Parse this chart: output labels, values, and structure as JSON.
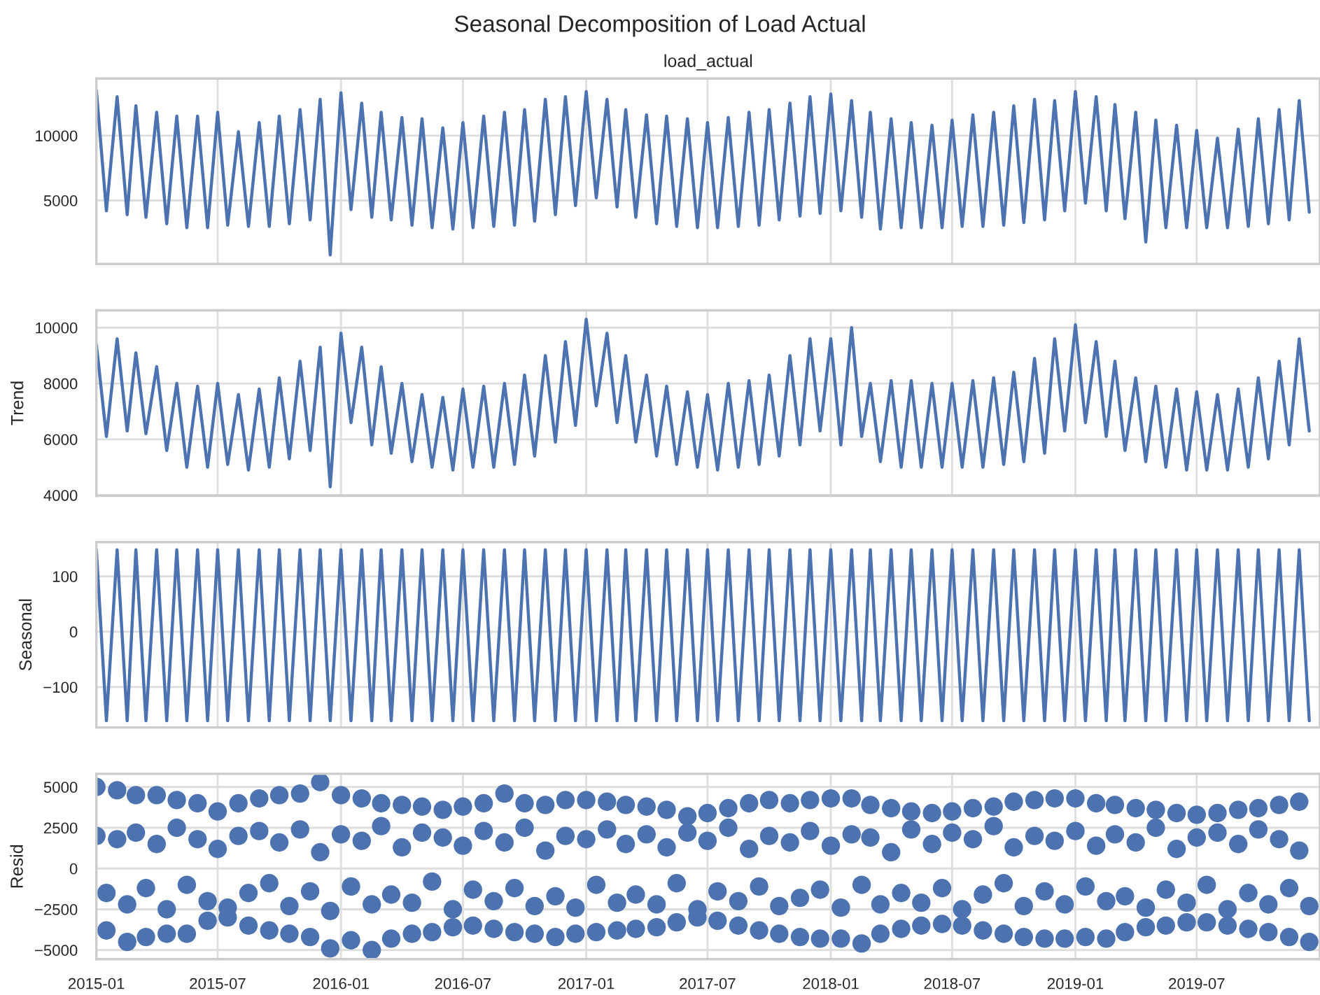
{
  "chart_data": [
    {
      "type": "line",
      "title": "Seasonal Decomposition of Load Actual",
      "subtitle": "load_actual",
      "x": [
        "2015-01-01",
        "2015-01-16",
        "2015-02-01",
        "2015-02-16",
        "2015-03-01",
        "2015-03-16",
        "2015-04-01",
        "2015-04-16",
        "2015-05-01",
        "2015-05-16",
        "2015-06-01",
        "2015-06-16",
        "2015-07-01",
        "2015-07-16",
        "2015-08-01",
        "2015-08-16",
        "2015-09-01",
        "2015-09-16",
        "2015-10-01",
        "2015-10-16",
        "2015-11-01",
        "2015-11-16",
        "2015-12-01",
        "2015-12-16",
        "2016-01-01",
        "2016-01-16",
        "2016-02-01",
        "2016-02-16",
        "2016-03-01",
        "2016-03-16",
        "2016-04-01",
        "2016-04-16",
        "2016-05-01",
        "2016-05-16",
        "2016-06-01",
        "2016-06-16",
        "2016-07-01",
        "2016-07-16",
        "2016-08-01",
        "2016-08-16",
        "2016-09-01",
        "2016-09-16",
        "2016-10-01",
        "2016-10-16",
        "2016-11-01",
        "2016-11-16",
        "2016-12-01",
        "2016-12-16",
        "2017-01-01",
        "2017-01-16",
        "2017-02-01",
        "2017-02-16",
        "2017-03-01",
        "2017-03-16",
        "2017-04-01",
        "2017-04-16",
        "2017-05-01",
        "2017-05-16",
        "2017-06-01",
        "2017-06-16",
        "2017-07-01",
        "2017-07-16",
        "2017-08-01",
        "2017-08-16",
        "2017-09-01",
        "2017-09-16",
        "2017-10-01",
        "2017-10-16",
        "2017-11-01",
        "2017-11-16",
        "2017-12-01",
        "2017-12-16",
        "2018-01-01",
        "2018-01-16",
        "2018-02-01",
        "2018-02-16",
        "2018-03-01",
        "2018-03-16",
        "2018-04-01",
        "2018-04-16",
        "2018-05-01",
        "2018-05-16",
        "2018-06-01",
        "2018-06-16",
        "2018-07-01",
        "2018-07-16",
        "2018-08-01",
        "2018-08-16",
        "2018-09-01",
        "2018-09-16",
        "2018-10-01",
        "2018-10-16",
        "2018-11-01",
        "2018-11-16",
        "2018-12-01",
        "2018-12-16",
        "2019-01-01",
        "2019-01-16",
        "2019-02-01",
        "2019-02-16",
        "2019-03-01",
        "2019-03-16",
        "2019-04-01",
        "2019-04-16",
        "2019-05-01",
        "2019-05-16",
        "2019-06-01",
        "2019-06-16",
        "2019-07-01",
        "2019-07-16",
        "2019-08-01",
        "2019-08-16",
        "2019-09-01",
        "2019-09-16",
        "2019-10-01",
        "2019-10-16",
        "2019-11-01",
        "2019-11-16",
        "2019-12-01",
        "2019-12-16"
      ],
      "series": [
        {
          "color": "#4c72b0",
          "values": [
            13500,
            4200,
            13000,
            3900,
            12300,
            3700,
            11800,
            3200,
            11500,
            2900,
            11500,
            2900,
            11800,
            3100,
            10300,
            3000,
            11000,
            3000,
            11500,
            3200,
            12000,
            3500,
            12800,
            800,
            13300,
            4300,
            12500,
            3700,
            11800,
            3500,
            11400,
            3100,
            11300,
            2900,
            10600,
            2800,
            11000,
            2900,
            11500,
            3000,
            11800,
            3100,
            12000,
            3400,
            12800,
            3900,
            13000,
            4600,
            13400,
            5200,
            12800,
            4500,
            12000,
            3700,
            11600,
            3200,
            11500,
            3000,
            11300,
            2900,
            11000,
            2900,
            11400,
            3000,
            11800,
            3100,
            12000,
            3500,
            12500,
            3800,
            13000,
            4000,
            13200,
            4200,
            12700,
            3700,
            11800,
            2800,
            11300,
            2900,
            11000,
            2900,
            10800,
            2900,
            11200,
            3000,
            11600,
            3000,
            11800,
            3100,
            12300,
            3300,
            12800,
            3500,
            12700,
            4200,
            13400,
            4800,
            13000,
            4200,
            12400,
            3600,
            11800,
            1800,
            11200,
            2900,
            10800,
            2900,
            10400,
            2900,
            9800,
            2900,
            10500,
            3000,
            11300,
            3200,
            12000,
            3500,
            12700,
            4100
          ]
        }
      ],
      "xlim": [
        "2015-01-01",
        "2020-01-01"
      ],
      "ylim": [
        100,
        14400
      ],
      "yticks": [
        5000,
        10000
      ],
      "xticks": [
        {
          "value": "2015-01-01",
          "label": null
        },
        {
          "value": "2015-07-01",
          "label": null
        },
        {
          "value": "2016-01-01",
          "label": null
        },
        {
          "value": "2016-07-01",
          "label": null
        },
        {
          "value": "2017-01-01",
          "label": null
        },
        {
          "value": "2017-07-01",
          "label": null
        },
        {
          "value": "2018-01-01",
          "label": null
        },
        {
          "value": "2018-07-01",
          "label": null
        },
        {
          "value": "2019-01-01",
          "label": null
        },
        {
          "value": "2019-07-01",
          "label": null
        }
      ],
      "tick_labels": "y",
      "grid": true,
      "marker": "none"
    },
    {
      "type": "line",
      "ylabel": "Trend",
      "x": [
        "2015-01-01",
        "2015-01-16",
        "2015-02-01",
        "2015-02-16",
        "2015-03-01",
        "2015-03-16",
        "2015-04-01",
        "2015-04-16",
        "2015-05-01",
        "2015-05-16",
        "2015-06-01",
        "2015-06-16",
        "2015-07-01",
        "2015-07-16",
        "2015-08-01",
        "2015-08-16",
        "2015-09-01",
        "2015-09-16",
        "2015-10-01",
        "2015-10-16",
        "2015-11-01",
        "2015-11-16",
        "2015-12-01",
        "2015-12-16",
        "2016-01-01",
        "2016-01-16",
        "2016-02-01",
        "2016-02-16",
        "2016-03-01",
        "2016-03-16",
        "2016-04-01",
        "2016-04-16",
        "2016-05-01",
        "2016-05-16",
        "2016-06-01",
        "2016-06-16",
        "2016-07-01",
        "2016-07-16",
        "2016-08-01",
        "2016-08-16",
        "2016-09-01",
        "2016-09-16",
        "2016-10-01",
        "2016-10-16",
        "2016-11-01",
        "2016-11-16",
        "2016-12-01",
        "2016-12-16",
        "2017-01-01",
        "2017-01-16",
        "2017-02-01",
        "2017-02-16",
        "2017-03-01",
        "2017-03-16",
        "2017-04-01",
        "2017-04-16",
        "2017-05-01",
        "2017-05-16",
        "2017-06-01",
        "2017-06-16",
        "2017-07-01",
        "2017-07-16",
        "2017-08-01",
        "2017-08-16",
        "2017-09-01",
        "2017-09-16",
        "2017-10-01",
        "2017-10-16",
        "2017-11-01",
        "2017-11-16",
        "2017-12-01",
        "2017-12-16",
        "2018-01-01",
        "2018-01-16",
        "2018-02-01",
        "2018-02-16",
        "2018-03-01",
        "2018-03-16",
        "2018-04-01",
        "2018-04-16",
        "2018-05-01",
        "2018-05-16",
        "2018-06-01",
        "2018-06-16",
        "2018-07-01",
        "2018-07-16",
        "2018-08-01",
        "2018-08-16",
        "2018-09-01",
        "2018-09-16",
        "2018-10-01",
        "2018-10-16",
        "2018-11-01",
        "2018-11-16",
        "2018-12-01",
        "2018-12-16",
        "2019-01-01",
        "2019-01-16",
        "2019-02-01",
        "2019-02-16",
        "2019-03-01",
        "2019-03-16",
        "2019-04-01",
        "2019-04-16",
        "2019-05-01",
        "2019-05-16",
        "2019-06-01",
        "2019-06-16",
        "2019-07-01",
        "2019-07-16",
        "2019-08-01",
        "2019-08-16",
        "2019-09-01",
        "2019-09-16",
        "2019-10-01",
        "2019-10-16",
        "2019-11-01",
        "2019-11-16",
        "2019-12-01",
        "2019-12-16"
      ],
      "series": [
        {
          "color": "#4c72b0",
          "values": [
            9400,
            6100,
            9600,
            6300,
            9100,
            6200,
            8600,
            5600,
            8000,
            5000,
            7900,
            5000,
            8000,
            5100,
            7600,
            4900,
            7800,
            5000,
            8200,
            5300,
            8800,
            5600,
            9300,
            4300,
            9800,
            6600,
            9300,
            5800,
            8600,
            5500,
            8000,
            5200,
            7600,
            5000,
            7500,
            4900,
            7800,
            5000,
            7900,
            5000,
            8000,
            5100,
            8300,
            5400,
            9000,
            5900,
            9500,
            6500,
            10300,
            7200,
            9800,
            6600,
            9000,
            5900,
            8300,
            5400,
            7900,
            5100,
            7700,
            5000,
            7600,
            4900,
            8000,
            5000,
            8100,
            5100,
            8300,
            5400,
            9000,
            5800,
            9600,
            6300,
            9600,
            5800,
            10000,
            6100,
            8000,
            5200,
            8100,
            5000,
            8100,
            5000,
            8000,
            5000,
            8000,
            5000,
            8100,
            5000,
            8200,
            5100,
            8400,
            5200,
            8900,
            5500,
            9600,
            6300,
            10100,
            6600,
            9500,
            6100,
            8800,
            5600,
            8200,
            5200,
            7900,
            5000,
            7800,
            4900,
            7700,
            4900,
            7600,
            4900,
            7800,
            5000,
            8200,
            5300,
            8800,
            5800,
            9600,
            6300
          ]
        }
      ],
      "xlim": [
        "2015-01-01",
        "2020-01-01"
      ],
      "ylim": [
        3980,
        10620
      ],
      "yticks": [
        4000,
        6000,
        8000,
        10000
      ],
      "xticks": [
        {
          "value": "2015-01-01",
          "label": null
        },
        {
          "value": "2015-07-01",
          "label": null
        },
        {
          "value": "2016-01-01",
          "label": null
        },
        {
          "value": "2016-07-01",
          "label": null
        },
        {
          "value": "2017-01-01",
          "label": null
        },
        {
          "value": "2017-07-01",
          "label": null
        },
        {
          "value": "2018-01-01",
          "label": null
        },
        {
          "value": "2018-07-01",
          "label": null
        },
        {
          "value": "2019-01-01",
          "label": null
        },
        {
          "value": "2019-07-01",
          "label": null
        }
      ],
      "tick_labels": "y",
      "grid": true,
      "marker": "none"
    },
    {
      "type": "line",
      "ylabel": "Seasonal",
      "x": [
        "2015-01-01",
        "2015-01-16",
        "2015-02-01",
        "2015-02-16",
        "2015-03-01",
        "2015-03-16",
        "2015-04-01",
        "2015-04-16",
        "2015-05-01",
        "2015-05-16",
        "2015-06-01",
        "2015-06-16",
        "2015-07-01",
        "2015-07-16",
        "2015-08-01",
        "2015-08-16",
        "2015-09-01",
        "2015-09-16",
        "2015-10-01",
        "2015-10-16",
        "2015-11-01",
        "2015-11-16",
        "2015-12-01",
        "2015-12-16",
        "2016-01-01",
        "2016-01-16",
        "2016-02-01",
        "2016-02-16",
        "2016-03-01",
        "2016-03-16",
        "2016-04-01",
        "2016-04-16",
        "2016-05-01",
        "2016-05-16",
        "2016-06-01",
        "2016-06-16",
        "2016-07-01",
        "2016-07-16",
        "2016-08-01",
        "2016-08-16",
        "2016-09-01",
        "2016-09-16",
        "2016-10-01",
        "2016-10-16",
        "2016-11-01",
        "2016-11-16",
        "2016-12-01",
        "2016-12-16",
        "2017-01-01",
        "2017-01-16",
        "2017-02-01",
        "2017-02-16",
        "2017-03-01",
        "2017-03-16",
        "2017-04-01",
        "2017-04-16",
        "2017-05-01",
        "2017-05-16",
        "2017-06-01",
        "2017-06-16",
        "2017-07-01",
        "2017-07-16",
        "2017-08-01",
        "2017-08-16",
        "2017-09-01",
        "2017-09-16",
        "2017-10-01",
        "2017-10-16",
        "2017-11-01",
        "2017-11-16",
        "2017-12-01",
        "2017-12-16",
        "2018-01-01",
        "2018-01-16",
        "2018-02-01",
        "2018-02-16",
        "2018-03-01",
        "2018-03-16",
        "2018-04-01",
        "2018-04-16",
        "2018-05-01",
        "2018-05-16",
        "2018-06-01",
        "2018-06-16",
        "2018-07-01",
        "2018-07-16",
        "2018-08-01",
        "2018-08-16",
        "2018-09-01",
        "2018-09-16",
        "2018-10-01",
        "2018-10-16",
        "2018-11-01",
        "2018-11-16",
        "2018-12-01",
        "2018-12-16",
        "2019-01-01",
        "2019-01-16",
        "2019-02-01",
        "2019-02-16",
        "2019-03-01",
        "2019-03-16",
        "2019-04-01",
        "2019-04-16",
        "2019-05-01",
        "2019-05-16",
        "2019-06-01",
        "2019-06-16",
        "2019-07-01",
        "2019-07-16",
        "2019-08-01",
        "2019-08-16",
        "2019-09-01",
        "2019-09-16",
        "2019-10-01",
        "2019-10-16",
        "2019-11-01",
        "2019-11-16",
        "2019-12-01",
        "2019-12-16"
      ],
      "series": [
        {
          "color": "#4c72b0",
          "values": [
            148,
            -161,
            148,
            -161,
            148,
            -161,
            148,
            -161,
            148,
            -161,
            148,
            -161,
            148,
            -161,
            148,
            -161,
            148,
            -161,
            148,
            -161,
            148,
            -161,
            148,
            -161,
            148,
            -161,
            148,
            -161,
            148,
            -161,
            148,
            -161,
            148,
            -161,
            148,
            -161,
            148,
            -161,
            148,
            -161,
            148,
            -161,
            148,
            -161,
            148,
            -161,
            148,
            -161,
            148,
            -161,
            148,
            -161,
            148,
            -161,
            148,
            -161,
            148,
            -161,
            148,
            -161,
            148,
            -161,
            148,
            -161,
            148,
            -161,
            148,
            -161,
            148,
            -161,
            148,
            -161,
            148,
            -161,
            148,
            -161,
            148,
            -161,
            148,
            -161,
            148,
            -161,
            148,
            -161,
            148,
            -161,
            148,
            -161,
            148,
            -161,
            148,
            -161,
            148,
            -161,
            148,
            -161,
            148,
            -161,
            148,
            -161,
            148,
            -161,
            148,
            -161,
            148,
            -161,
            148,
            -161,
            148,
            -161,
            148,
            -161,
            148,
            -161,
            148,
            -161,
            148,
            -161,
            148,
            -161
          ]
        }
      ],
      "xlim": [
        "2015-01-01",
        "2020-01-01"
      ],
      "ylim": [
        -173,
        162
      ],
      "yticks": [
        {
          "value": -100,
          "label": "−100"
        },
        0,
        100
      ],
      "xticks": [
        {
          "value": "2015-01-01",
          "label": null
        },
        {
          "value": "2015-07-01",
          "label": null
        },
        {
          "value": "2016-01-01",
          "label": null
        },
        {
          "value": "2016-07-01",
          "label": null
        },
        {
          "value": "2017-01-01",
          "label": null
        },
        {
          "value": "2017-07-01",
          "label": null
        },
        {
          "value": "2018-01-01",
          "label": null
        },
        {
          "value": "2018-07-01",
          "label": null
        },
        {
          "value": "2019-01-01",
          "label": null
        },
        {
          "value": "2019-07-01",
          "label": null
        }
      ],
      "tick_labels": "y",
      "grid": true,
      "marker": "none"
    },
    {
      "type": "scatter",
      "ylabel": "Resid",
      "x": [
        "2015-01-01",
        "2015-01-16",
        "2015-02-01",
        "2015-02-16",
        "2015-03-01",
        "2015-03-16",
        "2015-04-01",
        "2015-04-16",
        "2015-05-01",
        "2015-05-16",
        "2015-06-01",
        "2015-06-16",
        "2015-07-01",
        "2015-07-16",
        "2015-08-01",
        "2015-08-16",
        "2015-09-01",
        "2015-09-16",
        "2015-10-01",
        "2015-10-16",
        "2015-11-01",
        "2015-11-16",
        "2015-12-01",
        "2015-12-16",
        "2016-01-01",
        "2016-01-16",
        "2016-02-01",
        "2016-02-16",
        "2016-03-01",
        "2016-03-16",
        "2016-04-01",
        "2016-04-16",
        "2016-05-01",
        "2016-05-16",
        "2016-06-01",
        "2016-06-16",
        "2016-07-01",
        "2016-07-16",
        "2016-08-01",
        "2016-08-16",
        "2016-09-01",
        "2016-09-16",
        "2016-10-01",
        "2016-10-16",
        "2016-11-01",
        "2016-11-16",
        "2016-12-01",
        "2016-12-16",
        "2017-01-01",
        "2017-01-16",
        "2017-02-01",
        "2017-02-16",
        "2017-03-01",
        "2017-03-16",
        "2017-04-01",
        "2017-04-16",
        "2017-05-01",
        "2017-05-16",
        "2017-06-01",
        "2017-06-16",
        "2017-07-01",
        "2017-07-16",
        "2017-08-01",
        "2017-08-16",
        "2017-09-01",
        "2017-09-16",
        "2017-10-01",
        "2017-10-16",
        "2017-11-01",
        "2017-11-16",
        "2017-12-01",
        "2017-12-16",
        "2018-01-01",
        "2018-01-16",
        "2018-02-01",
        "2018-02-16",
        "2018-03-01",
        "2018-03-16",
        "2018-04-01",
        "2018-04-16",
        "2018-05-01",
        "2018-05-16",
        "2018-06-01",
        "2018-06-16",
        "2018-07-01",
        "2018-07-16",
        "2018-08-01",
        "2018-08-16",
        "2018-09-01",
        "2018-09-16",
        "2018-10-01",
        "2018-10-16",
        "2018-11-01",
        "2018-11-16",
        "2018-12-01",
        "2018-12-16",
        "2019-01-01",
        "2019-01-16",
        "2019-02-01",
        "2019-02-16",
        "2019-03-01",
        "2019-03-16",
        "2019-04-01",
        "2019-04-16",
        "2019-05-01",
        "2019-05-16",
        "2019-06-01",
        "2019-06-16",
        "2019-07-01",
        "2019-07-16",
        "2019-08-01",
        "2019-08-16",
        "2019-09-01",
        "2019-09-16",
        "2019-10-01",
        "2019-10-16",
        "2019-11-01",
        "2019-11-16",
        "2019-12-01",
        "2019-12-16"
      ],
      "series": [
        {
          "color": "#4c72b0",
          "values": [
            5000,
            -3800,
            4800,
            -4500,
            4500,
            -4200,
            4500,
            -4000,
            4200,
            -4000,
            4000,
            -3200,
            3500,
            -3000,
            4000,
            -3500,
            4300,
            -3800,
            4500,
            -4000,
            4600,
            -4200,
            5300,
            -4900,
            4500,
            -4400,
            4300,
            -5000,
            4000,
            -4300,
            3900,
            -4000,
            3800,
            -3900,
            3600,
            -3600,
            3800,
            -3500,
            4000,
            -3700,
            4600,
            -3900,
            4000,
            -4000,
            3900,
            -4200,
            4200,
            -4000,
            4200,
            -3900,
            4100,
            -3800,
            3900,
            -3700,
            3800,
            -3600,
            3600,
            -3300,
            3200,
            -3000,
            3400,
            -3200,
            3700,
            -3500,
            4000,
            -3800,
            4200,
            -4000,
            4000,
            -4200,
            4200,
            -4300,
            4300,
            -4300,
            4300,
            -4600,
            3900,
            -4000,
            3700,
            -3700,
            3500,
            -3500,
            3400,
            -3400,
            3500,
            -3500,
            3700,
            -3800,
            3800,
            -4000,
            4100,
            -4200,
            4200,
            -4300,
            4300,
            -4300,
            4300,
            -4200,
            4000,
            -4300,
            3900,
            -3900,
            3700,
            -3600,
            3600,
            -3500,
            3400,
            -3300,
            3300,
            -3300,
            3400,
            -3500,
            3600,
            -3700,
            3700,
            -3900,
            3900,
            -4200,
            4100,
            -4500
          ]
        },
        {
          "color": "#4c72b0",
          "values": [
            2000,
            -1500,
            1800,
            -2200,
            2200,
            -1200,
            1500,
            -2500,
            2500,
            -1000,
            1800,
            -2000,
            1200,
            -2400,
            2000,
            -1500,
            2300,
            -900,
            1600,
            -2300,
            2400,
            -1400,
            1000,
            -2600,
            2100,
            -1100,
            1700,
            -2200,
            2600,
            -1600,
            1300,
            -2100,
            2200,
            -800,
            1900,
            -2500,
            1400,
            -1300,
            2300,
            -2000,
            1600,
            -1200,
            2500,
            -2300,
            1100,
            -1700,
            2000,
            -2400,
            1800,
            -1000,
            2400,
            -2100,
            1500,
            -1600,
            2100,
            -2200,
            1300,
            -900,
            2200,
            -2500,
            1700,
            -1400,
            2500,
            -2000,
            1200,
            -1100,
            2000,
            -2300,
            1600,
            -1800,
            2300,
            -1300,
            1400,
            -2400,
            2100,
            -1000,
            1900,
            -2200,
            1000,
            -1500,
            2400,
            -2100,
            1500,
            -1200,
            2200,
            -2500,
            1800,
            -1600,
            2600,
            -900,
            1300,
            -2300,
            2000,
            -1400,
            1700,
            -2200,
            2300,
            -1100,
            1400,
            -2000,
            2100,
            -1700,
            1600,
            -2400,
            2500,
            -1300,
            1200,
            -2100,
            1900,
            -1000,
            2200,
            -2500,
            1500,
            -1500,
            2400,
            -2200,
            1800,
            -1200,
            1100,
            -2300
          ]
        }
      ],
      "xlim": [
        "2015-01-01",
        "2020-01-01"
      ],
      "ylim": [
        -5560,
        5810
      ],
      "yticks": [
        {
          "value": -5000,
          "label": "−5000"
        },
        {
          "value": -2500,
          "label": "−2500"
        },
        0,
        2500,
        5000
      ],
      "xticks": [
        {
          "value": "2015-01-01",
          "label": "2015-01"
        },
        {
          "value": "2015-07-01",
          "label": "2015-07"
        },
        {
          "value": "2016-01-01",
          "label": "2016-01"
        },
        {
          "value": "2016-07-01",
          "label": "2016-07"
        },
        {
          "value": "2017-01-01",
          "label": "2017-01"
        },
        {
          "value": "2017-07-01",
          "label": "2017-07"
        },
        {
          "value": "2018-01-01",
          "label": "2018-01"
        },
        {
          "value": "2018-07-01",
          "label": "2018-07"
        },
        {
          "value": "2019-01-01",
          "label": "2019-01"
        },
        {
          "value": "2019-07-01",
          "label": "2019-07"
        }
      ],
      "grid": true,
      "marker": "circle"
    }
  ]
}
